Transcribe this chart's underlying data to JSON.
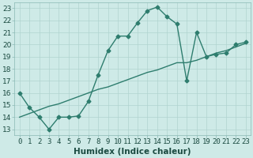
{
  "x": [
    0,
    1,
    2,
    3,
    4,
    5,
    6,
    7,
    8,
    9,
    10,
    11,
    12,
    13,
    14,
    15,
    16,
    17,
    18,
    19,
    20,
    21,
    22,
    23
  ],
  "y_data": [
    16.0,
    14.8,
    14.0,
    13.0,
    14.0,
    14.0,
    14.1,
    15.3,
    17.5,
    19.5,
    20.7,
    20.7,
    21.8,
    22.8,
    23.1,
    22.3,
    21.7,
    17.0,
    21.0,
    19.0,
    19.2,
    19.3,
    20.0,
    20.2
  ],
  "y_trend": [
    14.0,
    14.3,
    14.6,
    14.9,
    15.1,
    15.4,
    15.7,
    16.0,
    16.3,
    16.5,
    16.8,
    17.1,
    17.4,
    17.7,
    17.9,
    18.2,
    18.5,
    18.5,
    18.7,
    19.0,
    19.3,
    19.5,
    19.8,
    20.1
  ],
  "line_color": "#2e7d6e",
  "bg_color": "#ceeae7",
  "grid_color": "#b0d4d0",
  "xlabel": "Humidex (Indice chaleur)",
  "ylim": [
    12.5,
    23.5
  ],
  "xlim": [
    -0.5,
    23.5
  ],
  "yticks": [
    13,
    14,
    15,
    16,
    17,
    18,
    19,
    20,
    21,
    22,
    23
  ],
  "xticks": [
    0,
    1,
    2,
    3,
    4,
    5,
    6,
    7,
    8,
    9,
    10,
    11,
    12,
    13,
    14,
    15,
    16,
    17,
    18,
    19,
    20,
    21,
    22,
    23
  ],
  "marker_size": 2.5,
  "line_width": 1.0,
  "font_size": 6.5
}
